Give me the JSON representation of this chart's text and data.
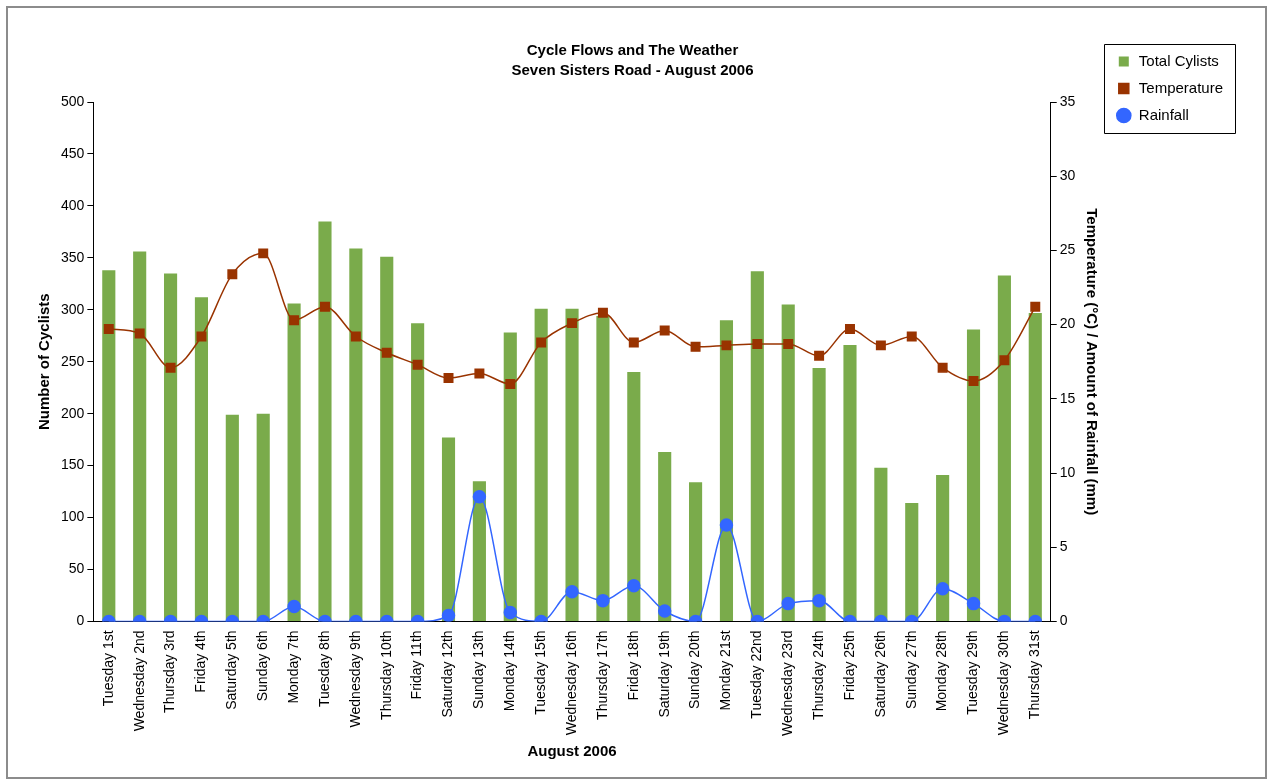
{
  "chart_data": {
    "type": "bar",
    "title": "Cycle Flows and The Weather",
    "subtitle": "Seven Sisters Road - August 2006",
    "xlabel": "August 2006",
    "ylabel": "Number of Cyclists",
    "y2label": "Temperature (°C) / Amount of Rainfall (mm)",
    "categories": [
      "Tuesday 1st",
      "Wednesday 2nd",
      "Thursday 3rd",
      "Friday 4th",
      "Saturday 5th",
      "Sunday 6th",
      "Monday 7th",
      "Tuesday 8th",
      "Wednesday 9th",
      "Thursday 10th",
      "Friday 11th",
      "Saturday 12th",
      "Sunday 13th",
      "Monday 14th",
      "Tuesday 15th",
      "Wednesday 16th",
      "Thursday 17th",
      "Friday 18th",
      "Saturday 19th",
      "Sunday 20th",
      "Monday 21st",
      "Tuesday 22nd",
      "Wednesday 23rd",
      "Thursday 24th",
      "Friday 25th",
      "Saturday 26th",
      "Sunday 27th",
      "Monday 28th",
      "Tuesday 29th",
      "Wednesday 30th",
      "Thursday 31st"
    ],
    "series": [
      {
        "name": "Total Cylists",
        "color": "#7aab4b",
        "values": [
          338,
          356,
          335,
          312,
          199,
          200,
          306,
          385,
          359,
          351,
          287,
          177,
          135,
          278,
          301,
          301,
          294,
          240,
          163,
          134,
          290,
          337,
          305,
          244,
          266,
          148,
          114,
          141,
          281,
          333,
          297
        ]
      },
      {
        "name": "Temperature",
        "type": "line",
        "axis": "y2",
        "marker": "square",
        "color": "#993300",
        "values": [
          19.7,
          19.4,
          17.1,
          19.2,
          23.4,
          24.8,
          20.3,
          21.2,
          19.2,
          18.1,
          17.3,
          16.4,
          16.7,
          16.0,
          18.8,
          20.1,
          20.8,
          18.8,
          19.6,
          18.5,
          18.6,
          18.7,
          18.7,
          17.9,
          19.7,
          18.6,
          19.2,
          17.1,
          16.2,
          17.6,
          21.2
        ]
      },
      {
        "name": "Rainfall",
        "type": "line",
        "axis": "y2",
        "marker": "circle",
        "color": "#3366ff",
        "values": [
          0,
          0,
          0,
          0,
          0,
          0,
          1.0,
          0,
          0,
          0,
          0,
          0.4,
          8.4,
          0.6,
          0,
          2.0,
          1.4,
          2.4,
          0.7,
          0,
          6.5,
          0,
          1.2,
          1.4,
          0,
          0,
          0,
          2.2,
          1.2,
          0,
          0
        ]
      }
    ],
    "ylim": [
      0,
      500
    ],
    "yticks": [
      0,
      50,
      100,
      150,
      200,
      250,
      300,
      350,
      400,
      450,
      500
    ],
    "y2lim": [
      0,
      35
    ],
    "y2ticks": [
      0,
      5,
      10,
      15,
      20,
      25,
      30,
      35
    ],
    "grid": false,
    "legend": "top right"
  }
}
